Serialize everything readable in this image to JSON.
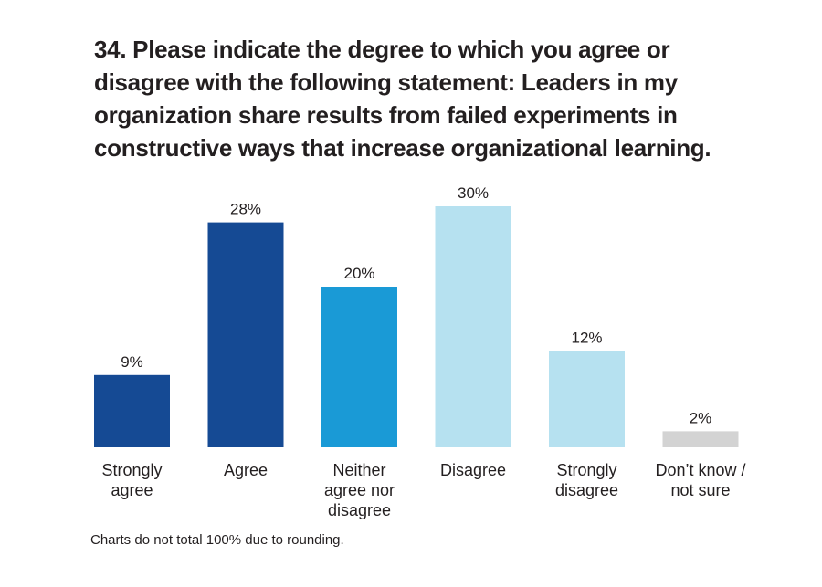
{
  "title": "34. Please indicate the degree to which you agree or disagree with the following statement: Leaders in my organization share results from failed experiments in constructive ways that increase organizational learning.",
  "footnote": "Charts do not total 100% due to rounding.",
  "colors": {
    "dark_blue": "#154a94",
    "mid_blue": "#1a9ad6",
    "light_blue": "#b6e1f0",
    "gray": "#d3d3d3",
    "text": "#231f20"
  },
  "chart_data": {
    "type": "bar",
    "title": "34. Please indicate the degree to which you agree or disagree with the following statement: Leaders in my organization share results from failed experiments in constructive ways that increase organizational learning.",
    "categories": [
      [
        "Strongly",
        "agree"
      ],
      [
        "Agree"
      ],
      [
        "Neither",
        "agree nor",
        "disagree"
      ],
      [
        "Disagree"
      ],
      [
        "Strongly",
        "disagree"
      ],
      [
        "Don’t know /",
        "not sure"
      ]
    ],
    "values": [
      9,
      28,
      20,
      30,
      12,
      2
    ],
    "value_labels": [
      "9%",
      "28%",
      "20%",
      "30%",
      "12%",
      "2%"
    ],
    "bar_colors": [
      "#154a94",
      "#154a94",
      "#1a9ad6",
      "#b6e1f0",
      "#b6e1f0",
      "#d3d3d3"
    ],
    "xlabel": "",
    "ylabel": "",
    "ylim": [
      0,
      30
    ],
    "grid": false
  }
}
